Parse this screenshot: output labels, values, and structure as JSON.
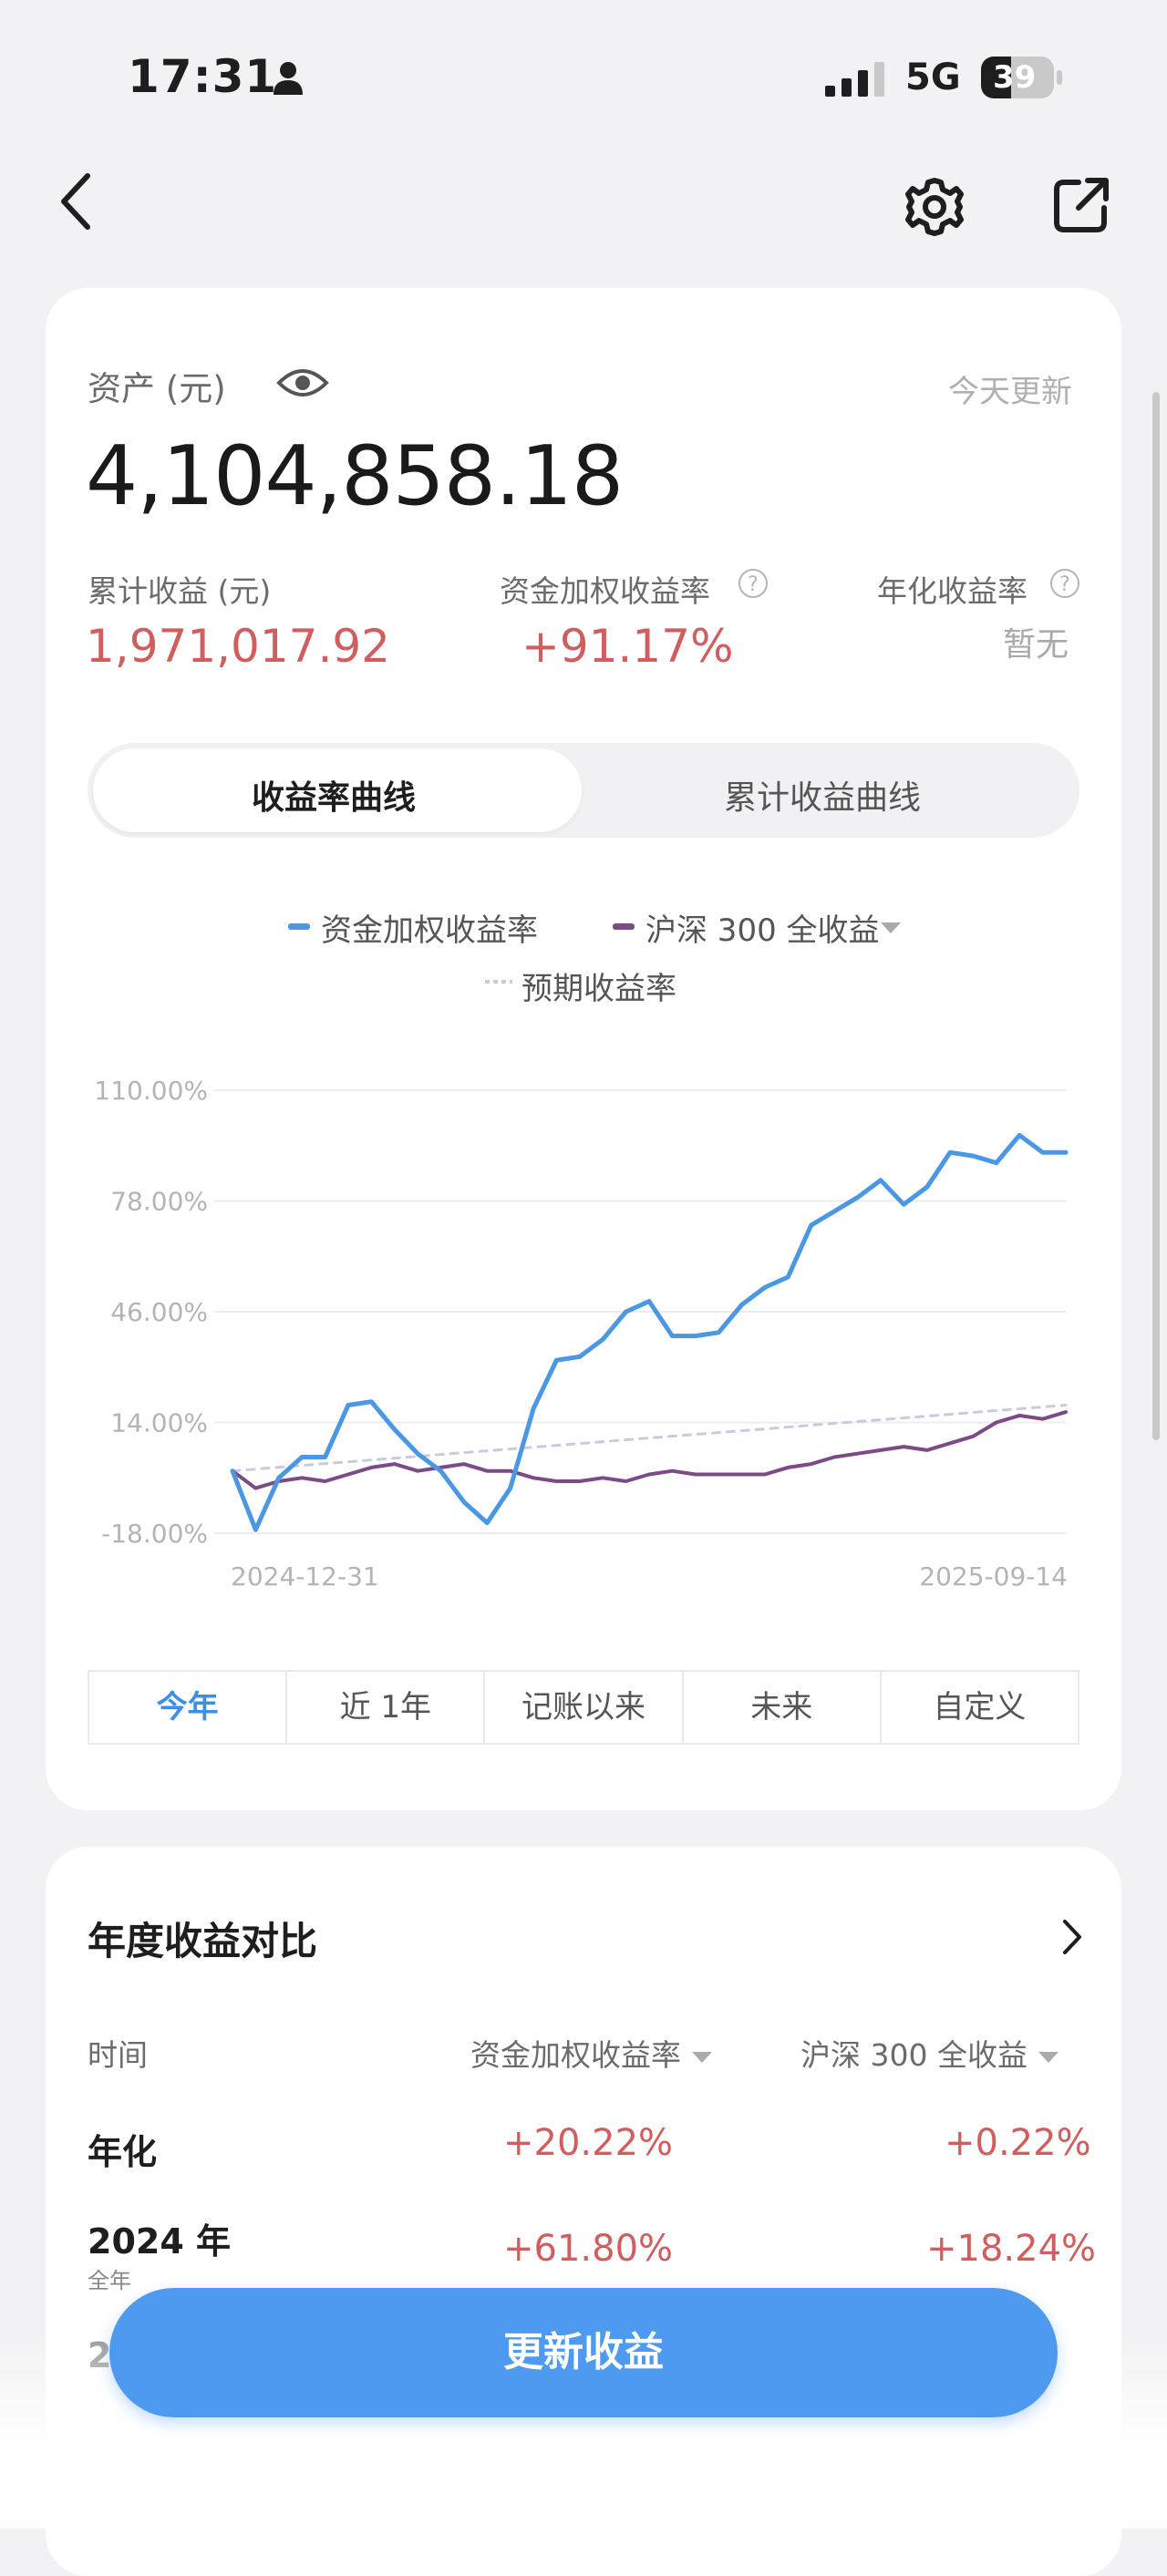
{
  "status_bar": {
    "time": "17:31",
    "network": "5G",
    "battery": "39"
  },
  "asset": {
    "label": "资产 (元)",
    "updated": "今天更新",
    "value": "4,104,858.18"
  },
  "metrics": [
    {
      "label": "累计收益 (元)",
      "value": "1,971,017.92"
    },
    {
      "label": "资金加权收益率",
      "value": "+91.17%"
    },
    {
      "label": "年化收益率",
      "value": "暂无"
    }
  ],
  "tabs": {
    "active": "收益率曲线",
    "inactive": "累计收益曲线"
  },
  "legend": {
    "series1": "资金加权收益率",
    "series2": "沪深 300 全收益",
    "series3": "预期收益率"
  },
  "chart_data": {
    "type": "line",
    "y_ticks": [
      "110.00%",
      "78.00%",
      "46.00%",
      "14.00%",
      "-18.00%"
    ],
    "ylim": [
      -18,
      110
    ],
    "x_start_label": "2024-12-31",
    "x_end_label": "2025-09-14",
    "grid": true,
    "series": [
      {
        "name": "资金加权收益率",
        "color": "#4a97e3",
        "values": [
          0,
          -17,
          -2,
          4,
          4,
          19,
          20,
          12,
          5,
          0,
          -9,
          -15,
          -5,
          18,
          32,
          33,
          38,
          46,
          49,
          39,
          39,
          40,
          48,
          53,
          56,
          71,
          75,
          79,
          84,
          77,
          82,
          92,
          91,
          89,
          97,
          92,
          92
        ]
      },
      {
        "name": "沪深 300 全收益",
        "color": "#7b4a87",
        "values": [
          0,
          -5,
          -3,
          -2,
          -3,
          -1,
          1,
          2,
          0,
          1,
          2,
          0,
          0,
          -2,
          -3,
          -3,
          -2,
          -3,
          -1,
          0,
          -1,
          -1,
          -1,
          -1,
          1,
          2,
          4,
          5,
          6,
          7,
          6,
          8,
          10,
          14,
          16,
          15,
          17
        ]
      },
      {
        "name": "预期收益率",
        "color": "#c8cbe0",
        "values": [
          0,
          19
        ]
      }
    ]
  },
  "ranges": [
    "今年",
    "近 1年",
    "记账以来",
    "未来",
    "自定义"
  ],
  "annual": {
    "title": "年度收益对比",
    "col_time": "时间",
    "col1": "资金加权收益率",
    "col2": "沪深 300 全收益",
    "rows": [
      {
        "label": "年化",
        "sub": "",
        "v1": "+20.22%",
        "v2": "+0.22%"
      },
      {
        "label": "2024 年",
        "sub": "全年",
        "v1": "+61.80%",
        "v2": "+18.24%"
      }
    ],
    "partial_row_label": "2"
  },
  "cta": "更新收益",
  "colors": {
    "accent": "#4e9af1",
    "positive": "#d15e5e"
  }
}
